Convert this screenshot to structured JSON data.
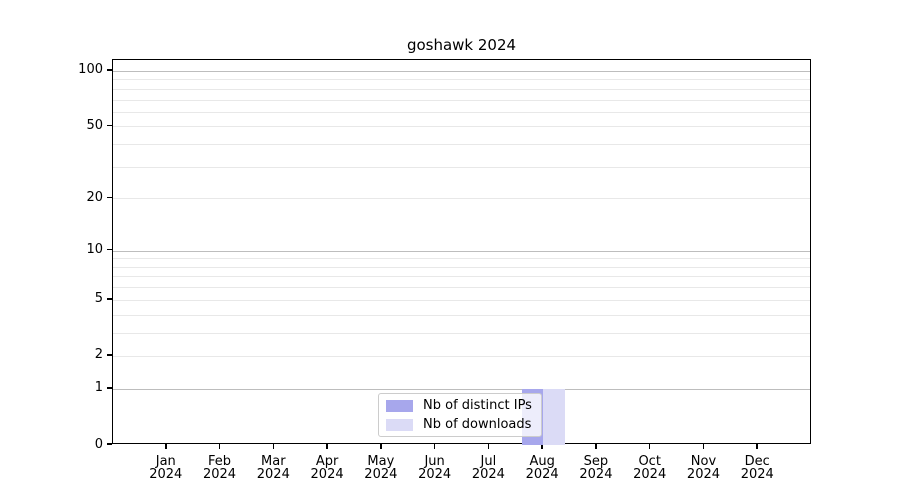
{
  "title": "goshawk 2024",
  "chart_data": {
    "type": "bar",
    "title": "goshawk 2024",
    "categories": [
      "Jan",
      "Feb",
      "Mar",
      "Apr",
      "May",
      "Jun",
      "Jul",
      "Aug",
      "Sep",
      "Oct",
      "Nov",
      "Dec"
    ],
    "x_year_label": "2024",
    "series": [
      {
        "name": "Nb of distinct IPs",
        "color": "#a7a7ec",
        "values": [
          0,
          0,
          0,
          0,
          0,
          0,
          0,
          1,
          0,
          0,
          0,
          0
        ]
      },
      {
        "name": "Nb of downloads",
        "color": "#dbdbf6",
        "values": [
          0,
          0,
          0,
          0,
          0,
          0,
          0,
          1,
          0,
          0,
          0,
          0
        ]
      }
    ],
    "xlabel": "",
    "ylabel": "",
    "yscale": "log1p",
    "ylim": [
      0,
      112
    ],
    "y_tick_values": [
      0,
      1,
      2,
      5,
      10,
      20,
      50,
      100
    ],
    "y_major_gridlines": [
      1,
      10,
      100
    ],
    "y_minor_gridlines": [
      2,
      3,
      4,
      5,
      6,
      7,
      8,
      9,
      20,
      30,
      40,
      50,
      60,
      70,
      80,
      90
    ],
    "grid": true,
    "legend_position": "lower center"
  },
  "colors": {
    "background": "#ffffff",
    "spine": "#000000",
    "major_grid": "#bdbdbd",
    "minor_grid": "#e8e8e8",
    "legend_border": "#cccccc",
    "text": "#000000"
  }
}
